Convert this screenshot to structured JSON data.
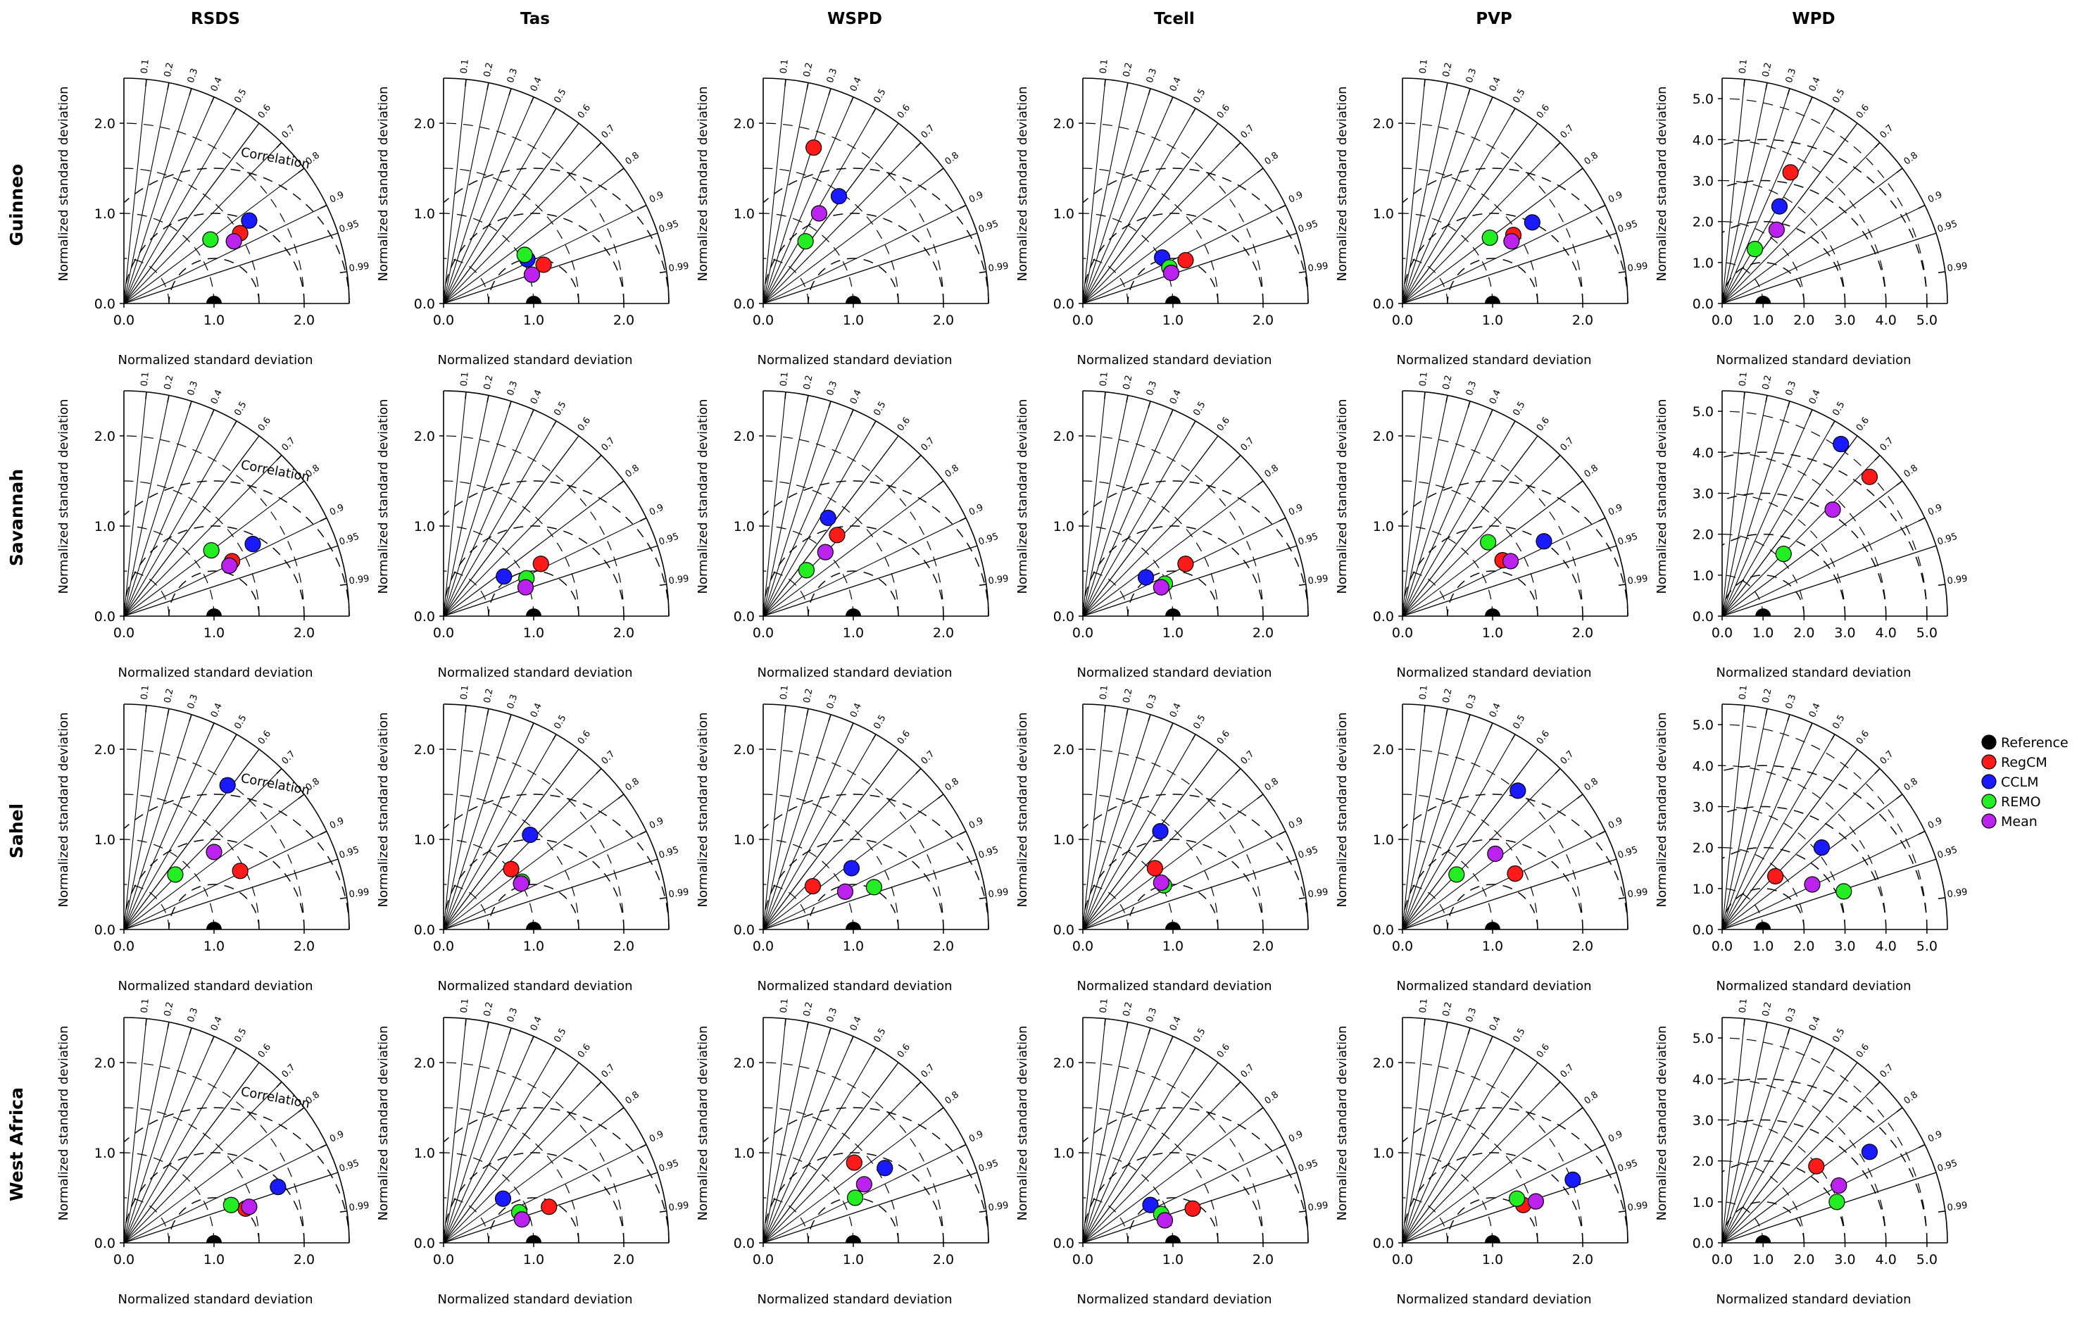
{
  "figure": {
    "columns": [
      "RSDS",
      "Tas",
      "WSPD",
      "Tcell",
      "PVP",
      "WPD"
    ],
    "rows": [
      "Guinneo",
      "Savannah",
      "Sahel",
      "West Africa"
    ],
    "axis_label": "Normalized standard deviation",
    "correlation_label": "Correlation",
    "correlation_ticks": [
      "0.1",
      "0.2",
      "0.3",
      "0.4",
      "0.5",
      "0.6",
      "0.7",
      "0.8",
      "0.9",
      "0.95",
      "0.99"
    ],
    "tick_labels_small": [
      "0.0",
      "1.0",
      "2.0"
    ],
    "tick_labels_large": [
      "0.0",
      "1.0",
      "2.0",
      "3.0",
      "4.0",
      "5.0"
    ]
  },
  "legend": {
    "items": [
      {
        "label": "Reference",
        "color": "#000000"
      },
      {
        "label": "RegCM",
        "color": "#ff1a1a"
      },
      {
        "label": "CCLM",
        "color": "#1a1aff"
      },
      {
        "label": "REMO",
        "color": "#22ee22"
      },
      {
        "label": "Mean",
        "color": "#bb22ee"
      }
    ]
  },
  "chart_data": {
    "type": "taylor",
    "series_names": [
      "RegCM",
      "CCLM",
      "REMO",
      "Mean"
    ],
    "panels": [
      {
        "row": "Guinneo",
        "column": "RSDS",
        "rmax": 2.5,
        "points": [
          [
            1.29,
            0.78
          ],
          [
            1.39,
            0.92
          ],
          [
            0.96,
            0.71
          ],
          [
            1.22,
            0.69
          ]
        ]
      },
      {
        "row": "Guinneo",
        "column": "Tas",
        "rmax": 2.5,
        "points": [
          [
            1.11,
            0.43
          ],
          [
            0.93,
            0.49
          ],
          [
            0.9,
            0.54
          ],
          [
            0.98,
            0.32
          ]
        ]
      },
      {
        "row": "Guinneo",
        "column": "WSPD",
        "rmax": 2.5,
        "points": [
          [
            0.56,
            1.73
          ],
          [
            0.84,
            1.19
          ],
          [
            0.47,
            0.69
          ],
          [
            0.62,
            1.0
          ]
        ]
      },
      {
        "row": "Guinneo",
        "column": "Tcell",
        "rmax": 2.5,
        "points": [
          [
            1.14,
            0.48
          ],
          [
            0.88,
            0.51
          ],
          [
            0.96,
            0.4
          ],
          [
            0.98,
            0.34
          ]
        ]
      },
      {
        "row": "Guinneo",
        "column": "PVP",
        "rmax": 2.5,
        "points": [
          [
            1.23,
            0.76
          ],
          [
            1.44,
            0.9
          ],
          [
            0.97,
            0.73
          ],
          [
            1.21,
            0.69
          ]
        ]
      },
      {
        "row": "Guinneo",
        "column": "WPD",
        "rmax": 5.5,
        "points": [
          [
            1.67,
            3.2
          ],
          [
            1.4,
            2.37
          ],
          [
            0.8,
            1.33
          ],
          [
            1.33,
            1.8
          ]
        ]
      },
      {
        "row": "Savannah",
        "column": "RSDS",
        "rmax": 2.5,
        "points": [
          [
            1.2,
            0.61
          ],
          [
            1.43,
            0.8
          ],
          [
            0.97,
            0.73
          ],
          [
            1.17,
            0.56
          ]
        ]
      },
      {
        "row": "Savannah",
        "column": "Tas",
        "rmax": 2.5,
        "points": [
          [
            1.08,
            0.58
          ],
          [
            0.67,
            0.44
          ],
          [
            0.92,
            0.42
          ],
          [
            0.91,
            0.32
          ]
        ]
      },
      {
        "row": "Savannah",
        "column": "WSPD",
        "rmax": 2.5,
        "points": [
          [
            0.82,
            0.9
          ],
          [
            0.72,
            1.09
          ],
          [
            0.48,
            0.51
          ],
          [
            0.69,
            0.71
          ]
        ]
      },
      {
        "row": "Savannah",
        "column": "Tcell",
        "rmax": 2.5,
        "points": [
          [
            1.14,
            0.58
          ],
          [
            0.7,
            0.43
          ],
          [
            0.91,
            0.36
          ],
          [
            0.87,
            0.32
          ]
        ]
      },
      {
        "row": "Savannah",
        "column": "PVP",
        "rmax": 2.5,
        "points": [
          [
            1.11,
            0.62
          ],
          [
            1.57,
            0.83
          ],
          [
            0.95,
            0.82
          ],
          [
            1.2,
            0.61
          ]
        ]
      },
      {
        "row": "Savannah",
        "column": "WPD",
        "rmax": 5.5,
        "points": [
          [
            3.6,
            3.4
          ],
          [
            2.9,
            4.2
          ],
          [
            1.5,
            1.52
          ],
          [
            2.7,
            2.6
          ]
        ]
      },
      {
        "row": "Sahel",
        "column": "RSDS",
        "rmax": 2.5,
        "points": [
          [
            1.29,
            0.65
          ],
          [
            1.15,
            1.6
          ],
          [
            0.57,
            0.61
          ],
          [
            1.0,
            0.86
          ]
        ]
      },
      {
        "row": "Sahel",
        "column": "Tas",
        "rmax": 2.5,
        "points": [
          [
            0.75,
            0.67
          ],
          [
            0.96,
            1.05
          ],
          [
            0.87,
            0.53
          ],
          [
            0.86,
            0.51
          ]
        ]
      },
      {
        "row": "Sahel",
        "column": "WSPD",
        "rmax": 2.5,
        "points": [
          [
            0.55,
            0.48
          ],
          [
            0.98,
            0.68
          ],
          [
            1.23,
            0.47
          ],
          [
            0.91,
            0.42
          ]
        ]
      },
      {
        "row": "Sahel",
        "column": "Tcell",
        "rmax": 2.5,
        "points": [
          [
            0.8,
            0.68
          ],
          [
            0.86,
            1.09
          ],
          [
            0.9,
            0.49
          ],
          [
            0.87,
            0.52
          ]
        ]
      },
      {
        "row": "Sahel",
        "column": "PVP",
        "rmax": 2.5,
        "points": [
          [
            1.25,
            0.62
          ],
          [
            1.28,
            1.54
          ],
          [
            0.6,
            0.61
          ],
          [
            1.03,
            0.84
          ]
        ]
      },
      {
        "row": "Sahel",
        "column": "WPD",
        "rmax": 5.5,
        "points": [
          [
            1.3,
            1.3
          ],
          [
            2.43,
            2.0
          ],
          [
            2.97,
            0.93
          ],
          [
            2.2,
            1.1
          ]
        ]
      },
      {
        "row": "West Africa",
        "column": "RSDS",
        "rmax": 2.5,
        "points": [
          [
            1.35,
            0.38
          ],
          [
            1.71,
            0.62
          ],
          [
            1.19,
            0.42
          ],
          [
            1.39,
            0.4
          ]
        ]
      },
      {
        "row": "West Africa",
        "column": "Tas",
        "rmax": 2.5,
        "points": [
          [
            1.17,
            0.4
          ],
          [
            0.66,
            0.49
          ],
          [
            0.84,
            0.34
          ],
          [
            0.87,
            0.26
          ]
        ]
      },
      {
        "row": "West Africa",
        "column": "WSPD",
        "rmax": 2.5,
        "points": [
          [
            1.01,
            0.89
          ],
          [
            1.35,
            0.83
          ],
          [
            1.02,
            0.5
          ],
          [
            1.12,
            0.65
          ]
        ]
      },
      {
        "row": "West Africa",
        "column": "Tcell",
        "rmax": 2.5,
        "points": [
          [
            1.22,
            0.38
          ],
          [
            0.75,
            0.42
          ],
          [
            0.87,
            0.32
          ],
          [
            0.91,
            0.25
          ]
        ]
      },
      {
        "row": "West Africa",
        "column": "PVP",
        "rmax": 2.5,
        "points": [
          [
            1.34,
            0.42
          ],
          [
            1.89,
            0.7
          ],
          [
            1.27,
            0.49
          ],
          [
            1.48,
            0.46
          ]
        ]
      },
      {
        "row": "West Africa",
        "column": "WPD",
        "rmax": 5.5,
        "points": [
          [
            2.3,
            1.87
          ],
          [
            3.6,
            2.22
          ],
          [
            2.8,
            1.0
          ],
          [
            2.85,
            1.4
          ]
        ]
      }
    ]
  }
}
